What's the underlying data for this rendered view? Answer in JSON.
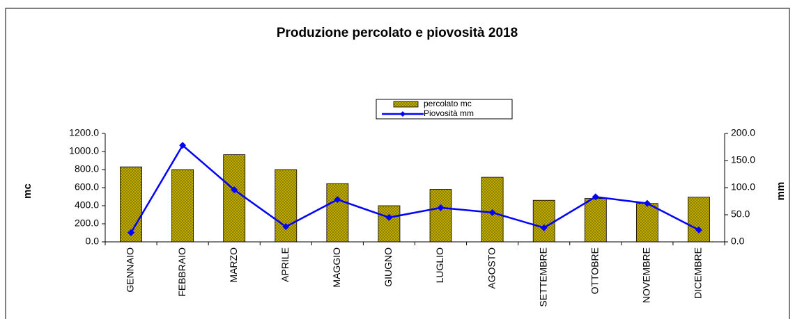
{
  "chart_data": {
    "type": "bar",
    "title": "Produzione percolato e piovosità 2018",
    "y_label": "mc",
    "y2_label": "mm",
    "categories": [
      "GENNAIO",
      "FEBBRAIO",
      "MARZO",
      "APRILE",
      "MAGGIO",
      "GIUGNO",
      "LUGLIO",
      "AGOSTO",
      "SETTEMBRE",
      "OTTOBRE",
      "NOVEMBRE",
      "DICEMBRE"
    ],
    "series": [
      {
        "name": "percolato mc",
        "type": "bar",
        "color": "#c8b400",
        "values": [
          830,
          800,
          965,
          800,
          645,
          400,
          580,
          715,
          460,
          480,
          425,
          495
        ]
      },
      {
        "name": "Piovosità mm",
        "type": "line",
        "axis": "y2",
        "color": "#0000ff",
        "values": [
          17,
          178,
          96,
          28,
          78,
          45,
          63,
          54,
          26,
          83,
          71,
          22
        ]
      }
    ],
    "ylim": [
      0,
      1200
    ],
    "yticks": [
      {
        "value": 0,
        "label": "0.0"
      },
      {
        "value": 200,
        "label": "200.0"
      },
      {
        "value": 400,
        "label": "400.0"
      },
      {
        "value": 600,
        "label": "600.0"
      },
      {
        "value": 800,
        "label": "800.0"
      },
      {
        "value": 1000,
        "label": "1000.0"
      },
      {
        "value": 1200,
        "label": "1200.0"
      }
    ],
    "y2lim": [
      0,
      200
    ],
    "y2ticks": [
      {
        "value": 0,
        "label": "0.0"
      },
      {
        "value": 50,
        "label": "50.0"
      },
      {
        "value": 100,
        "label": "100.0"
      },
      {
        "value": 150,
        "label": "150.0"
      },
      {
        "value": 200,
        "label": "200.0"
      }
    ],
    "grid": false
  }
}
